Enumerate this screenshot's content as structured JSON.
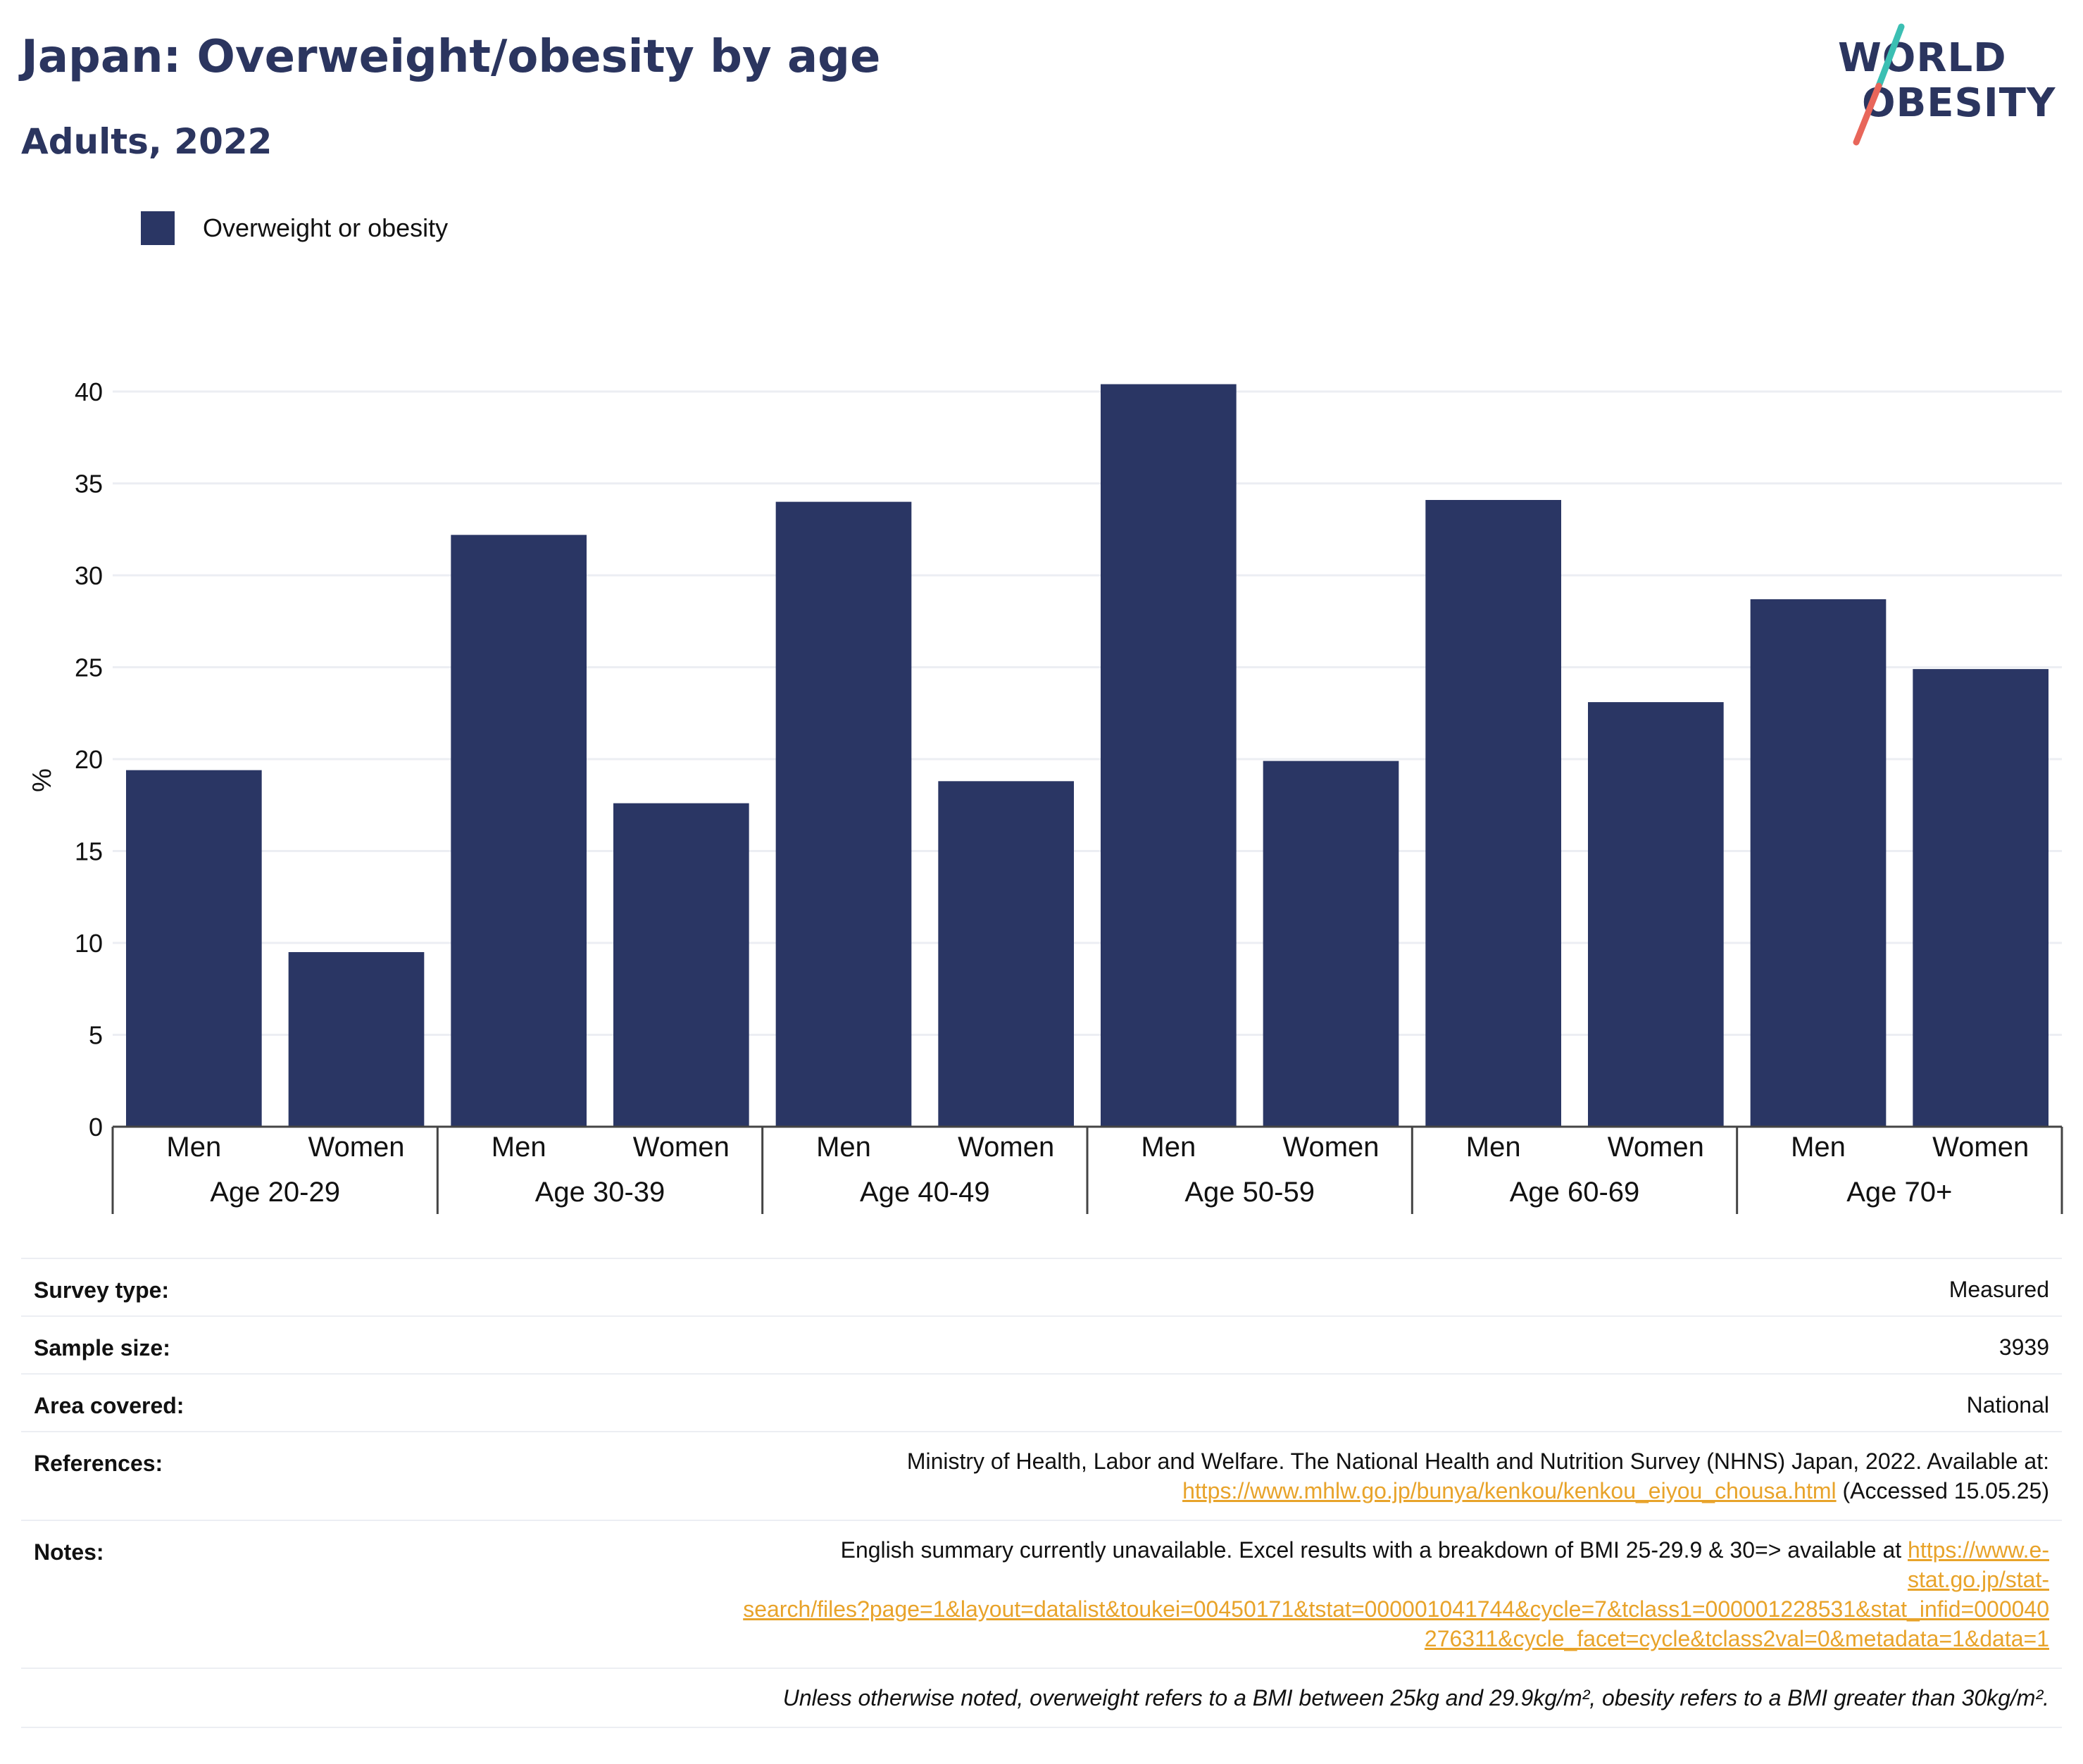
{
  "header": {
    "title": "Japan: Overweight/obesity by age",
    "subtitle": "Adults, 2022"
  },
  "logo": {
    "line1": "WORLD",
    "line2": "OBESITY"
  },
  "legend": {
    "label": "Overweight or obesity",
    "color": "#2a3664"
  },
  "chart_data": {
    "type": "bar",
    "groups": [
      "Age 20-29",
      "Age 30-39",
      "Age 40-49",
      "Age 50-59",
      "Age 60-69",
      "Age 70+"
    ],
    "subcategories": [
      "Men",
      "Women"
    ],
    "series": [
      {
        "name": "Overweight or obesity",
        "values": [
          19.4,
          9.5,
          32.2,
          17.6,
          34.0,
          18.8,
          40.4,
          19.9,
          34.1,
          23.1,
          28.7,
          24.9
        ]
      }
    ],
    "ylabel": "%",
    "ylim": [
      0,
      40
    ],
    "yticks": [
      0,
      5,
      10,
      15,
      20,
      25,
      30,
      35,
      40
    ],
    "grid": true,
    "bar_color": "#2a3664"
  },
  "meta": {
    "survey_type_label": "Survey type:",
    "survey_type": "Measured",
    "sample_size_label": "Sample size:",
    "sample_size": "3939",
    "area_label": "Area covered:",
    "area": "National",
    "references_label": "References:",
    "references_line1": "Ministry of Health, Labor and Welfare. The National Health and Nutrition Survey (NHNS) Japan, 2022. Available at:",
    "references_link": "https://www.mhlw.go.jp/bunya/kenkou/kenkou_eiyou_chousa.html",
    "references_accessed": " (Accessed 15.05.25)",
    "notes_label": "Notes:",
    "notes_text": "English summary currently unavailable. Excel results with a breakdown of BMI 25-29.9 & 30=> available at ",
    "notes_link_1": "https://www.e-",
    "notes_link_2": "stat.go.jp/stat-",
    "notes_link_3": "search/files?page=1&layout=datalist&toukei=00450171&tstat=000001041744&cycle=7&tclass1=000001228531&stat_infid=000040",
    "notes_link_4": "276311&cycle_facet=cycle&tclass2val=0&metadata=1&data=1",
    "footnote": "Unless otherwise noted, overweight refers to a BMI between 25kg and 29.9kg/m², obesity refers to a BMI greater than 30kg/m²."
  }
}
